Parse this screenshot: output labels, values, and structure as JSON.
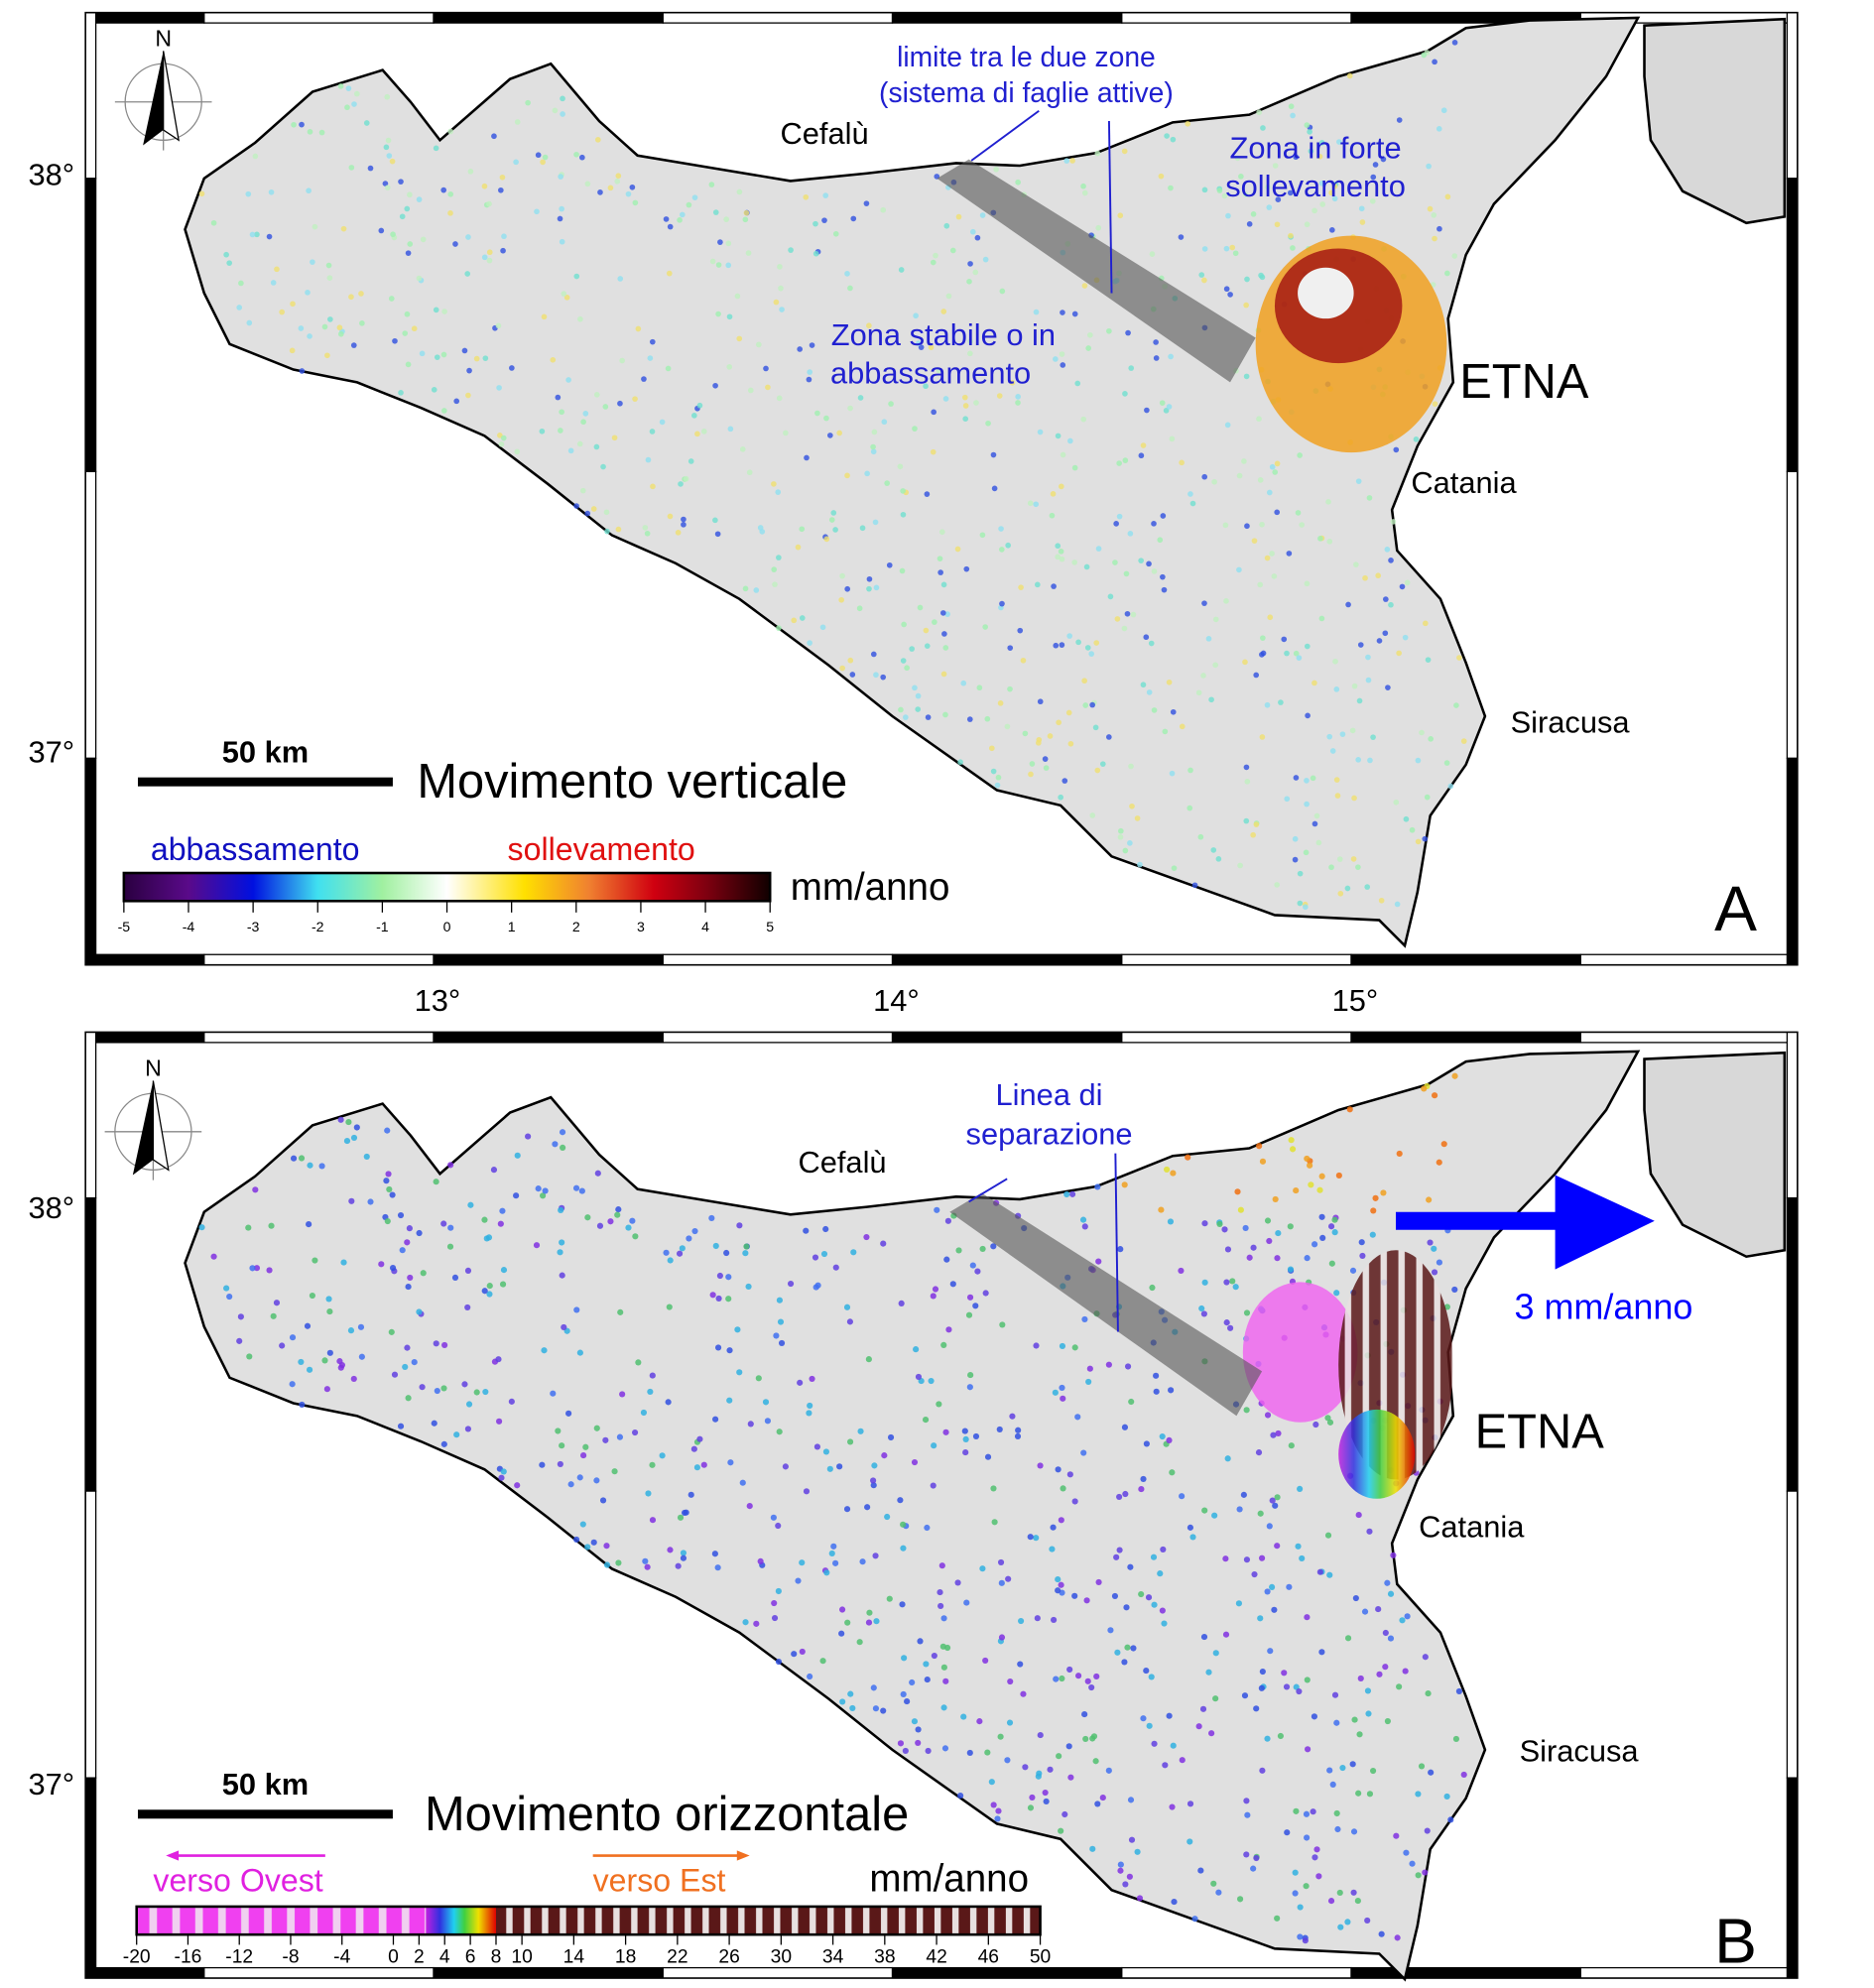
{
  "axes": {
    "lat_labels": [
      "38°",
      "37°"
    ],
    "lon_labels": [
      "13°",
      "14°",
      "15°"
    ]
  },
  "panel_a": {
    "letter": "A",
    "north_label": "N",
    "title": "Movimento verticale",
    "scale_label": "50 km",
    "annotations": {
      "boundary_line1": "limite tra le due zone",
      "boundary_line2": "(sistema di faglie attive)",
      "uplift_line1": "Zona in forte",
      "uplift_line2": "sollevamento",
      "stable_line1": "Zona stabile o in",
      "stable_line2": "abbassamento"
    },
    "places": {
      "cefalu": "Cefalù",
      "etna": "ETNA",
      "catania": "Catania",
      "siracusa": "Siracusa"
    },
    "legend": {
      "left_label": "abbassamento",
      "right_label": "sollevamento",
      "unit": "mm/anno",
      "ticks": [
        "-5",
        "-4",
        "-3",
        "-2",
        "-1",
        "0",
        "1",
        "2",
        "3",
        "4",
        "5"
      ],
      "colors": [
        "#2a0040",
        "#5a0a8a",
        "#0010e0",
        "#40e0f0",
        "#a0f0a0",
        "#ffffff",
        "#ffe000",
        "#f08030",
        "#d00010",
        "#800010",
        "#100000"
      ]
    }
  },
  "panel_b": {
    "letter": "B",
    "north_label": "N",
    "title": "Movimento orizzontale",
    "scale_label": "50 km",
    "annotations": {
      "separation_line1": "Linea di",
      "separation_line2": "separazione"
    },
    "places": {
      "cefalu": "Cefalù",
      "etna": "ETNA",
      "catania": "Catania",
      "siracusa": "Siracusa"
    },
    "vector_label": "3 mm/anno",
    "legend": {
      "left_label": "verso Ovest",
      "right_label": "verso Est",
      "unit": "mm/anno",
      "ticks": [
        "-20",
        "-16",
        "-12",
        "-8",
        "-4",
        "0",
        "2",
        "4",
        "6",
        "8",
        "10",
        "14",
        "18",
        "22",
        "26",
        "30",
        "34",
        "38",
        "42",
        "46",
        "50"
      ]
    }
  },
  "colors": {
    "annotation_blue": "#2020d0",
    "down_blue": "#1010c0",
    "up_red": "#e01010",
    "west_magenta": "#e020e0",
    "east_orange": "#f07020",
    "vector_blue": "#0000ff"
  }
}
